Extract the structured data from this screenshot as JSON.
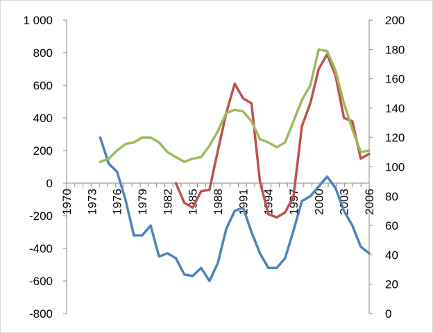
{
  "chart_data": {
    "type": "line",
    "x": [
      1970,
      1971,
      1972,
      1973,
      1974,
      1975,
      1976,
      1977,
      1978,
      1979,
      1980,
      1981,
      1982,
      1983,
      1984,
      1985,
      1986,
      1987,
      1988,
      1989,
      1990,
      1991,
      1992,
      1993,
      1994,
      1995,
      1996,
      1997,
      1998,
      1999,
      2000,
      2001,
      2002,
      2003,
      2004,
      2005,
      2006
    ],
    "x_tick_labels": [
      "1970",
      "1973",
      "1976",
      "1979",
      "1982",
      "1985",
      "1988",
      "1991",
      "1994",
      "1997",
      "2000",
      "2003",
      "2006"
    ],
    "x_tick_label_years": [
      1970,
      1973,
      1976,
      1979,
      1982,
      1985,
      1988,
      1991,
      1994,
      1997,
      2000,
      2003,
      2006
    ],
    "y_left": {
      "ylim": [
        -800,
        1000
      ],
      "ticks": [
        -800,
        -600,
        -400,
        -200,
        0,
        200,
        400,
        600,
        800,
        1000
      ],
      "tick_labels": [
        "-800",
        "-600",
        "-400",
        "-200",
        "0",
        "200",
        "400",
        "600",
        "800",
        "1 000"
      ]
    },
    "y_right": {
      "ylim": [
        0,
        200
      ],
      "ticks": [
        0,
        20,
        40,
        60,
        80,
        100,
        120,
        140,
        160,
        180,
        200
      ],
      "tick_labels": [
        "0",
        "20",
        "40",
        "60",
        "80",
        "100",
        "120",
        "140",
        "160",
        "180",
        "200"
      ]
    },
    "series": [
      {
        "axis": "left",
        "color": "#4f81bd",
        "values": [
          null,
          null,
          null,
          null,
          280,
          120,
          70,
          -100,
          -320,
          -320,
          -260,
          -450,
          -430,
          -460,
          -560,
          -570,
          -520,
          -600,
          -490,
          -280,
          -170,
          -150,
          -300,
          -430,
          -520,
          -520,
          -460,
          -290,
          -110,
          -80,
          -20,
          40,
          -30,
          -170,
          -260,
          -390,
          -430
        ]
      },
      {
        "axis": "left",
        "color": "#c0504d",
        "values": [
          null,
          null,
          null,
          null,
          null,
          null,
          null,
          null,
          null,
          null,
          null,
          null,
          null,
          0,
          -120,
          -150,
          -50,
          -40,
          200,
          430,
          610,
          520,
          490,
          10,
          -190,
          -210,
          -180,
          -80,
          350,
          490,
          700,
          790,
          660,
          400,
          380,
          150,
          180
        ]
      },
      {
        "axis": "left",
        "color": "#9bbb59",
        "values": [
          null,
          null,
          null,
          null,
          130,
          150,
          200,
          240,
          250,
          280,
          280,
          250,
          190,
          160,
          130,
          150,
          160,
          230,
          320,
          430,
          450,
          440,
          380,
          270,
          250,
          220,
          250,
          380,
          510,
          600,
          820,
          810,
          690,
          490,
          330,
          190,
          200
        ]
      }
    ]
  }
}
